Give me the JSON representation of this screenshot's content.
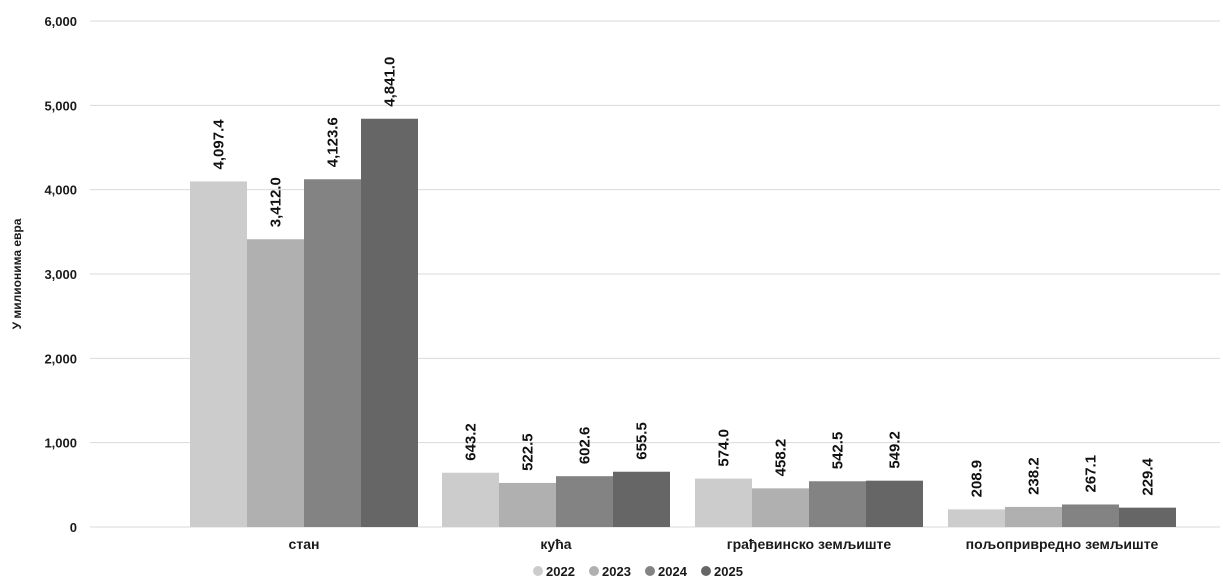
{
  "chart_data": {
    "type": "bar",
    "ylabel": "У милионима евра",
    "xlabel": "",
    "ylim": [
      0,
      6000
    ],
    "yticks": [
      0,
      1000,
      2000,
      3000,
      4000,
      5000,
      6000
    ],
    "ytick_labels": [
      "0",
      "1,000",
      "2,000",
      "3,000",
      "4,000",
      "5,000",
      "6,000"
    ],
    "grid": true,
    "legend_position": "bottom",
    "categories": [
      "стан",
      "кућа",
      "грађевинско земљиште",
      "пољопривредно земљиште"
    ],
    "series": [
      {
        "name": "2022",
        "color": "#cccccc",
        "values": [
          4097.4,
          643.2,
          574.0,
          208.9
        ],
        "labels": [
          "4,097.4",
          "643.2",
          "574.0",
          "208.9"
        ]
      },
      {
        "name": "2023",
        "color": "#b0b0b0",
        "values": [
          3412.0,
          522.5,
          458.2,
          238.2
        ],
        "labels": [
          "3,412.0",
          "522.5",
          "458.2",
          "238.2"
        ]
      },
      {
        "name": "2024",
        "color": "#838383",
        "values": [
          4123.6,
          602.6,
          542.5,
          267.1
        ],
        "labels": [
          "4,123.6",
          "602.6",
          "542.5",
          "267.1"
        ]
      },
      {
        "name": "2025",
        "color": "#666666",
        "values": [
          4841.0,
          655.5,
          549.2,
          229.4
        ],
        "labels": [
          "4,841.0",
          "655.5",
          "549.2",
          "229.4"
        ]
      }
    ]
  }
}
